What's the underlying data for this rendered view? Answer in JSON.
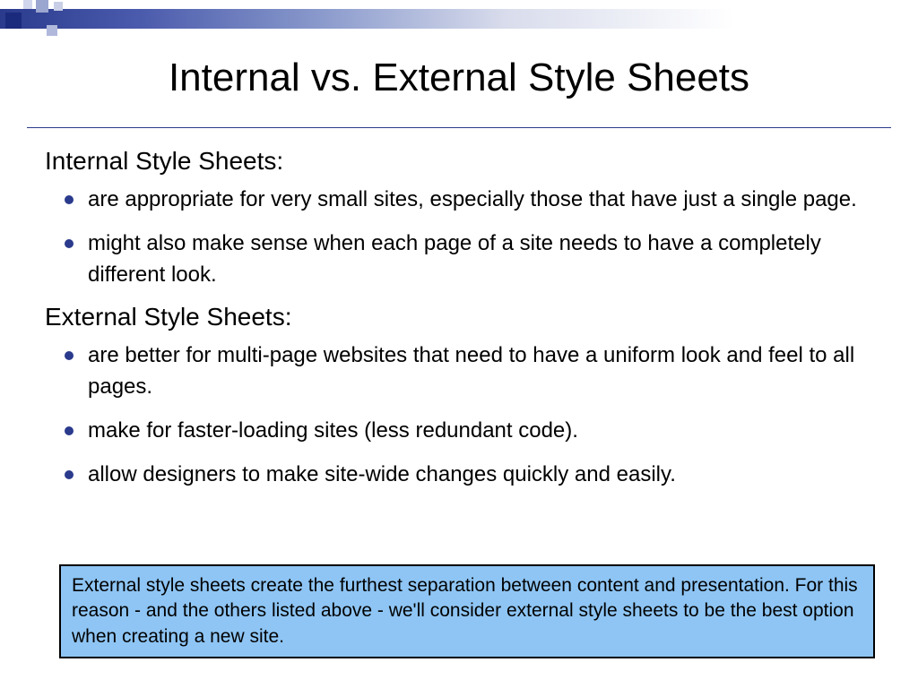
{
  "slide": {
    "title": "Internal vs. External Style Sheets",
    "decoration": {
      "gradient_start": "#2a3a8c",
      "gradient_end": "#ffffff",
      "square_colors": [
        "#1a2a7c",
        "#9aa6d0",
        "#c8cee6",
        "#b0b8dc",
        "#d0d6ec"
      ]
    },
    "sections": [
      {
        "heading": "Internal Style Sheets:",
        "bullets": [
          "are appropriate for very small sites, especially those that have just a single page.",
          "might also make sense when each page of a site needs to have a completely different look."
        ]
      },
      {
        "heading": "External Style Sheets:",
        "bullets": [
          "are better for multi-page websites that need to have a uniform look and feel to all pages.",
          "make for faster-loading sites (less redundant code).",
          "allow designers to make site-wide changes quickly and easily."
        ]
      }
    ],
    "callout": "External style sheets create the furthest separation between content and presentation.  For this reason - and the others listed above - we'll consider external style sheets to be the best option when creating a new site.",
    "styling": {
      "title_fontsize": 44,
      "heading_fontsize": 28,
      "body_fontsize": 24,
      "callout_fontsize": 21,
      "bullet_color": "#2a3a8c",
      "underline_color": "#2a3a8c",
      "callout_bg": "#8ec5f4",
      "callout_border": "#000000",
      "background": "#ffffff",
      "text_color": "#000000"
    }
  }
}
